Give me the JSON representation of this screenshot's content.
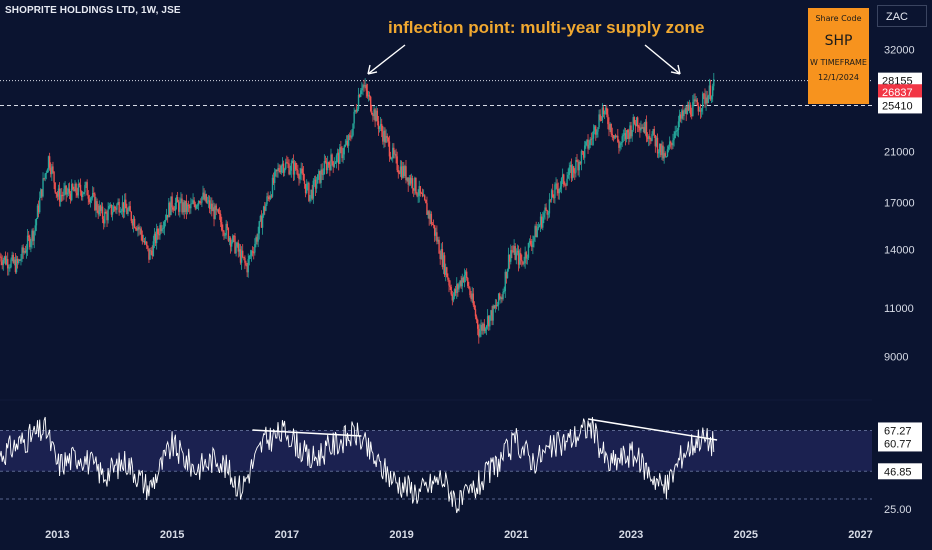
{
  "header": {
    "title": "SHOPRITE HOLDINGS LTD, 1W, JSE"
  },
  "annotation": {
    "text": "inflection point: multi-year supply zone"
  },
  "info_box": {
    "label": "Share Code",
    "code": "SHP",
    "timeframe": "W TIMEFRAME",
    "date": "12/1/2024",
    "color": "#f7931e"
  },
  "currency": "ZAC",
  "colors": {
    "background": "#0b1430",
    "up_candle": "#26a69a",
    "down_candle": "#ef5350",
    "rsi_line": "#ffffff",
    "rsi_band": "#1b2150",
    "annotation": "#f0a830",
    "current_price": "#f23645"
  },
  "chart_data": [
    {
      "type": "candlestick",
      "y_scale": "log",
      "ylim": [
        8000,
        34000
      ],
      "x_range": [
        2012.0,
        2027.2
      ],
      "x_tick_labels": [
        "2013",
        "2015",
        "2017",
        "2019",
        "2021",
        "2023",
        "2025",
        "2027"
      ],
      "y_tick_labels": [
        "32000",
        "21000",
        "17000",
        "14000",
        "11000",
        "9000"
      ],
      "y_ticks": [
        32000,
        21000,
        17000,
        14000,
        11000,
        9000
      ],
      "price_tags": [
        {
          "value": 28155,
          "label": "28155",
          "style": "dotted"
        },
        {
          "value": 26837,
          "label": "26837",
          "style": "current"
        },
        {
          "value": 25410,
          "label": "25410",
          "style": "dashed"
        }
      ],
      "trend_path": [
        [
          2012.0,
          13600
        ],
        [
          2012.3,
          13100
        ],
        [
          2012.6,
          15200
        ],
        [
          2012.85,
          20500
        ],
        [
          2013.0,
          17500
        ],
        [
          2013.5,
          18000
        ],
        [
          2013.8,
          16000
        ],
        [
          2014.1,
          17000
        ],
        [
          2014.4,
          15500
        ],
        [
          2014.6,
          13600
        ],
        [
          2014.8,
          15500
        ],
        [
          2015.0,
          17000
        ],
        [
          2015.3,
          16500
        ],
        [
          2015.5,
          17500
        ],
        [
          2015.8,
          16000
        ],
        [
          2016.1,
          14200
        ],
        [
          2016.3,
          13000
        ],
        [
          2016.5,
          15000
        ],
        [
          2016.6,
          16500
        ],
        [
          2016.9,
          20000
        ],
        [
          2017.2,
          19500
        ],
        [
          2017.4,
          17500
        ],
        [
          2017.7,
          20000
        ],
        [
          2017.9,
          20500
        ],
        [
          2018.1,
          22000
        ],
        [
          2018.3,
          28000
        ],
        [
          2018.6,
          23500
        ],
        [
          2018.9,
          20000
        ],
        [
          2019.2,
          18500
        ],
        [
          2019.5,
          16000
        ],
        [
          2019.7,
          13600
        ],
        [
          2019.9,
          11500
        ],
        [
          2020.1,
          12700
        ],
        [
          2020.35,
          10000
        ],
        [
          2020.6,
          10800
        ],
        [
          2020.75,
          11600
        ],
        [
          2020.9,
          14000
        ],
        [
          2021.1,
          13300
        ],
        [
          2021.4,
          15500
        ],
        [
          2021.7,
          18000
        ],
        [
          2022.0,
          19500
        ],
        [
          2022.3,
          22000
        ],
        [
          2022.5,
          25000
        ],
        [
          2022.8,
          21500
        ],
        [
          2023.1,
          24000
        ],
        [
          2023.4,
          22200
        ],
        [
          2023.6,
          20200
        ],
        [
          2023.8,
          23500
        ],
        [
          2024.0,
          25000
        ],
        [
          2024.2,
          25500
        ],
        [
          2024.45,
          27500
        ]
      ]
    },
    {
      "type": "line",
      "name": "RSI",
      "ylim": [
        25,
        75
      ],
      "band": [
        46.85,
        67.27
      ],
      "y_tick_labels": [
        "67.27",
        "60.77",
        "46.85",
        "25.00"
      ],
      "y_ticks": [
        67.27,
        60.77,
        46.85,
        25.0
      ],
      "trend_path": [
        [
          2012.0,
          55
        ],
        [
          2012.4,
          62
        ],
        [
          2012.8,
          68
        ],
        [
          2013.0,
          50
        ],
        [
          2013.4,
          55
        ],
        [
          2013.8,
          45
        ],
        [
          2014.2,
          52
        ],
        [
          2014.6,
          38
        ],
        [
          2015.0,
          60
        ],
        [
          2015.4,
          48
        ],
        [
          2015.8,
          54
        ],
        [
          2016.2,
          38
        ],
        [
          2016.6,
          62
        ],
        [
          2017.0,
          67
        ],
        [
          2017.4,
          52
        ],
        [
          2017.8,
          60
        ],
        [
          2018.2,
          66
        ],
        [
          2018.6,
          50
        ],
        [
          2018.9,
          42
        ],
        [
          2019.3,
          36
        ],
        [
          2019.7,
          44
        ],
        [
          2020.0,
          30
        ],
        [
          2020.4,
          42
        ],
        [
          2020.8,
          55
        ],
        [
          2021.0,
          62
        ],
        [
          2021.3,
          52
        ],
        [
          2021.6,
          58
        ],
        [
          2022.0,
          64
        ],
        [
          2022.3,
          70
        ],
        [
          2022.6,
          50
        ],
        [
          2023.0,
          56
        ],
        [
          2023.4,
          44
        ],
        [
          2023.6,
          38
        ],
        [
          2023.9,
          56
        ],
        [
          2024.2,
          64
        ],
        [
          2024.45,
          60.77
        ]
      ],
      "trendlines": [
        [
          [
            2016.4,
            67.5
          ],
          [
            2018.3,
            64.5
          ]
        ],
        [
          [
            2022.25,
            73.0
          ],
          [
            2024.5,
            62.5
          ]
        ]
      ]
    }
  ]
}
